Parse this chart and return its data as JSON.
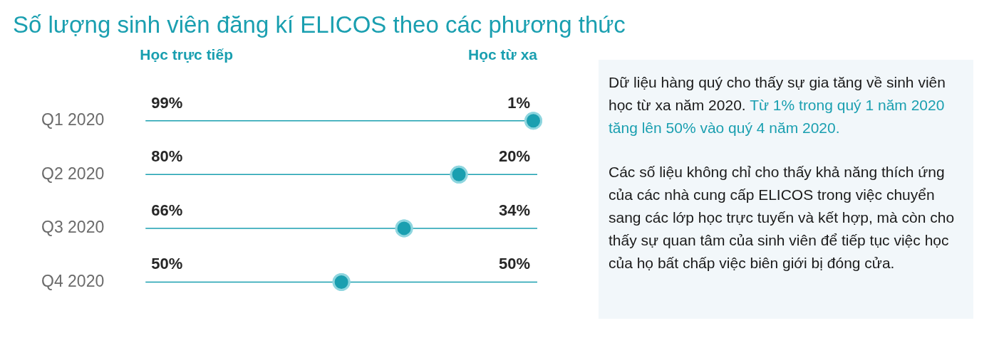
{
  "chart_data": {
    "type": "other",
    "title": "Số lượng sinh viên đăng kí ELICOS theo các phương thức",
    "categories": [
      "Q1 2020",
      "Q2 2020",
      "Q3 2020",
      "Q4 2020"
    ],
    "series": [
      {
        "name": "Học trực tiếp",
        "color": "#1a9fb0",
        "values": [
          99,
          80,
          66,
          50
        ],
        "value_labels": [
          "99%",
          "80%",
          "66%",
          "50%"
        ]
      },
      {
        "name": "Học từ xa",
        "color": "#1a9fb0",
        "axis": "x2",
        "values": [
          1,
          20,
          34,
          50
        ],
        "value_labels": [
          "1%",
          "20%",
          "34%",
          "50%"
        ]
      }
    ],
    "annotations": [
      "Dữ liệu hàng quý cho thấy sự gia tăng về sinh viên học từ xa năm 2020.",
      "Từ 1% trong quý 1 năm 2020 tăng lên 50% vào quý 4 năm 2020.",
      "Các số liệu không chỉ cho thấy khả năng thích ứng của các nhà cung cấp ELICOS trong việc chuyển sang các lớp học trực tuyến và kết hợp, mà còn cho thấy sự quan tâm của sinh viên để tiếp tục việc học của họ bất chấp việc biên giới bị đóng cửa."
    ]
  }
}
